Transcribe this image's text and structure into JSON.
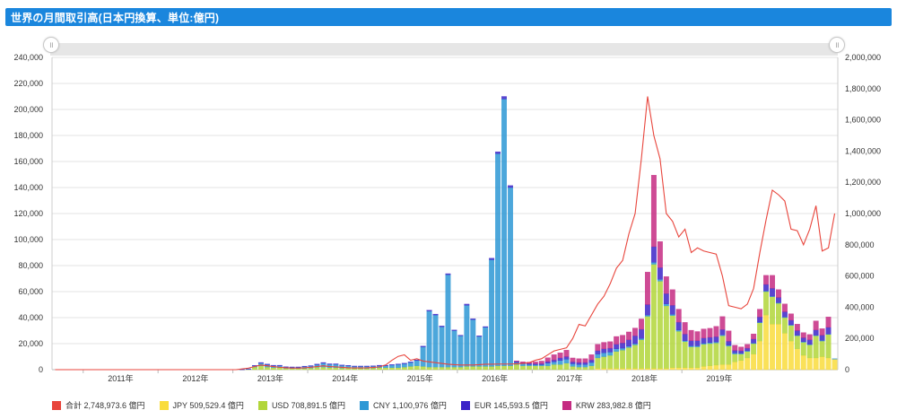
{
  "header": {
    "title": "世界の月間取引高(日本円換算、単位:億円)"
  },
  "slider": {
    "left_icon": "grip-icon",
    "right_icon": "grip-icon"
  },
  "colors": {
    "total": "#e8453c",
    "JPY": "#f9dc3c",
    "USD": "#b2d63a",
    "CNY": "#2d98d5",
    "EUR": "#3c24c8",
    "KRW": "#c52b82"
  },
  "legend": [
    {
      "key": "total",
      "label": "合計  2,748,973.6 億円"
    },
    {
      "key": "JPY",
      "label": "JPY  509,529.4 億円"
    },
    {
      "key": "USD",
      "label": "USD  708,891.5 億円"
    },
    {
      "key": "CNY",
      "label": "CNY  1,100,976 億円"
    },
    {
      "key": "EUR",
      "label": "EUR  145,593.5 億円"
    },
    {
      "key": "KRW",
      "label": "KRW  283,982.8 億円"
    }
  ],
  "chart_data": {
    "type": "bar",
    "stacked": true,
    "grid": true,
    "legend_position": "bottom",
    "x_start": "2010-08",
    "x_ticks": [
      "2011年",
      "2012年",
      "2013年",
      "2014年",
      "2015年",
      "2016年",
      "2017年",
      "2018年",
      "2019年"
    ],
    "y_left": {
      "lim": [
        0,
        240000
      ],
      "ticks": [
        "0",
        "20,000",
        "40,000",
        "60,000",
        "80,000",
        "100,000",
        "120,000",
        "140,000",
        "160,000",
        "180,000",
        "200,000",
        "220,000",
        "240,000"
      ]
    },
    "y_right": {
      "lim": [
        0,
        2000000
      ],
      "ticks": [
        "0",
        "200,000",
        "400,000",
        "600,000",
        "800,000",
        "1,000,000",
        "1,200,000",
        "1,400,000",
        "1,600,000",
        "1,800,000",
        "2,000,000"
      ]
    },
    "stack_order": [
      "JPY",
      "USD",
      "CNY",
      "EUR",
      "KRW"
    ],
    "series": [
      {
        "key": "JPY",
        "values": [
          0,
          0,
          0,
          0,
          0,
          0,
          0,
          0,
          0,
          0,
          0,
          0,
          0,
          0,
          0,
          0,
          0,
          0,
          0,
          0,
          0,
          0,
          0,
          0,
          0,
          0,
          0,
          0,
          0,
          0,
          0,
          0,
          0,
          0,
          0,
          0,
          0,
          0,
          0,
          0,
          0,
          0,
          0,
          0,
          0,
          0,
          0,
          0,
          0,
          0,
          0,
          0,
          0,
          0,
          0,
          0,
          0,
          0,
          0,
          0,
          0,
          0,
          0,
          0,
          0,
          0,
          0,
          0,
          0,
          0,
          0,
          0,
          0,
          0,
          0,
          0,
          0,
          0,
          0,
          0,
          0,
          0,
          0,
          0,
          0,
          0,
          0,
          1000,
          1000,
          1000,
          1000,
          1000,
          1000,
          1000,
          1000,
          1000,
          1000,
          1000,
          1000,
          1500,
          1500,
          1500,
          1500,
          1500,
          2500,
          3000,
          3500,
          4000,
          4000,
          6000,
          7000,
          9000,
          12000,
          22000,
          42000,
          35000,
          35000,
          28000,
          22000,
          16000,
          11000,
          9000,
          9000,
          10000,
          9000,
          8000,
          10000,
          6000,
          3000,
          3000,
          3000,
          6000,
          9000,
          12000,
          15000,
          10000,
          7000,
          6000,
          5000,
          4000,
          5000,
          7000,
          9000,
          13000,
          9000,
          10000
        ]
      },
      {
        "key": "USD",
        "values": [
          0,
          0,
          0,
          0,
          0,
          0,
          0,
          0,
          0,
          0,
          0,
          0,
          0,
          0,
          0,
          0,
          0,
          0,
          0,
          0,
          0,
          0,
          0,
          0,
          0,
          0,
          0,
          0,
          0,
          0,
          200,
          400,
          2000,
          3000,
          2000,
          1500,
          1500,
          1000,
          800,
          800,
          900,
          1200,
          1800,
          2000,
          1600,
          1600,
          1200,
          1200,
          1000,
          1000,
          1000,
          1200,
          1500,
          1500,
          1500,
          1500,
          2000,
          2500,
          3000,
          2500,
          2000,
          2000,
          2000,
          2000,
          2000,
          2000,
          2500,
          2500,
          2500,
          2500,
          2500,
          3000,
          3000,
          3000,
          4000,
          3000,
          3000,
          3000,
          3000,
          3000,
          4000,
          4000,
          5000,
          2500,
          2000,
          2000,
          3000,
          8000,
          9000,
          10000,
          13000,
          14000,
          16000,
          18000,
          22000,
          40000,
          80000,
          67000,
          48000,
          40000,
          28000,
          20000,
          16000,
          16000,
          17000,
          17000,
          17000,
          22000,
          14000,
          6000,
          5000,
          5000,
          8000,
          14000,
          18000,
          21000,
          16000,
          12000,
          12000,
          10000,
          10000,
          10000,
          17000,
          12000,
          18000
        ]
      },
      {
        "key": "CNY",
        "values": [
          0,
          0,
          0,
          0,
          0,
          0,
          0,
          0,
          0,
          0,
          0,
          0,
          0,
          0,
          0,
          0,
          0,
          0,
          0,
          0,
          0,
          0,
          0,
          0,
          0,
          0,
          0,
          0,
          0,
          0,
          0,
          200,
          1000,
          2000,
          1800,
          1500,
          1500,
          1000,
          1000,
          1000,
          1500,
          1500,
          2000,
          3000,
          2500,
          2500,
          2000,
          1800,
          1500,
          1500,
          1500,
          1500,
          1500,
          1500,
          2000,
          2500,
          2500,
          3000,
          4000,
          15000,
          43000,
          40000,
          31000,
          71000,
          28000,
          24000,
          47000,
          36000,
          23000,
          30000,
          82000,
          163000,
          205000,
          137000,
          1500,
          1500,
          1000,
          800,
          800,
          2000,
          2000,
          3000,
          3000,
          2000,
          2000,
          2000,
          2500,
          3000,
          3000,
          2500,
          2000,
          1500,
          1000,
          1000,
          1000,
          1000,
          1500,
          1500,
          1500,
          1000,
          1000,
          800,
          800,
          800,
          800,
          800,
          800,
          800,
          800,
          800,
          500,
          500,
          500,
          500,
          500,
          500,
          500,
          500,
          500,
          500,
          500,
          500,
          500,
          500,
          500,
          500,
          500
        ]
      },
      {
        "key": "EUR",
        "values": [
          0,
          0,
          0,
          0,
          0,
          0,
          0,
          0,
          0,
          0,
          0,
          0,
          0,
          0,
          0,
          0,
          0,
          0,
          0,
          0,
          0,
          0,
          0,
          0,
          0,
          0,
          0,
          0,
          0,
          0,
          50,
          100,
          300,
          500,
          500,
          400,
          400,
          300,
          300,
          300,
          300,
          400,
          500,
          500,
          400,
          400,
          400,
          300,
          300,
          300,
          300,
          300,
          400,
          400,
          400,
          400,
          500,
          500,
          500,
          600,
          700,
          700,
          600,
          800,
          500,
          500,
          900,
          700,
          500,
          600,
          1200,
          1500,
          2000,
          1500,
          800,
          800,
          800,
          700,
          800,
          1200,
          1500,
          2000,
          2000,
          1500,
          1500,
          1500,
          2000,
          2500,
          3000,
          3000,
          3500,
          4000,
          5000,
          6000,
          7000,
          8000,
          12000,
          9000,
          8000,
          7000,
          6000,
          5000,
          4000,
          4000,
          4000,
          4000,
          4000,
          4000,
          3000,
          2000,
          2000,
          2000,
          3000,
          4000,
          5000,
          6000,
          4000,
          4000,
          3500,
          3500,
          3000,
          3500,
          4000,
          4000,
          5000
        ]
      },
      {
        "key": "KRW",
        "values": [
          0,
          0,
          0,
          0,
          0,
          0,
          0,
          0,
          0,
          0,
          0,
          0,
          0,
          0,
          0,
          0,
          0,
          0,
          0,
          0,
          0,
          0,
          0,
          0,
          0,
          0,
          0,
          0,
          0,
          0,
          0,
          0,
          0,
          0,
          0,
          0,
          0,
          0,
          0,
          0,
          0,
          0,
          0,
          0,
          0,
          0,
          0,
          0,
          0,
          0,
          0,
          0,
          0,
          0,
          0,
          0,
          0,
          0,
          0,
          0,
          0,
          0,
          0,
          0,
          0,
          0,
          0,
          0,
          0,
          0,
          0,
          0,
          0,
          0,
          500,
          800,
          1000,
          1500,
          2000,
          3000,
          4000,
          4000,
          5000,
          3000,
          3000,
          3000,
          4000,
          5000,
          5000,
          5000,
          6000,
          6000,
          6000,
          6000,
          8000,
          25000,
          55000,
          20000,
          13000,
          12000,
          10000,
          9000,
          8000,
          7000,
          7000,
          7000,
          8000,
          10000,
          8000,
          4000,
          3000,
          3000,
          4000,
          6000,
          7000,
          10000,
          6000,
          6000,
          5000,
          5000,
          4000,
          4000,
          7000,
          5000,
          8000
        ]
      }
    ],
    "total": {
      "key": "total",
      "axis": "right",
      "values": [
        0,
        0,
        0,
        0,
        0,
        0,
        0,
        0,
        0,
        0,
        0,
        0,
        0,
        0,
        0,
        0,
        0,
        0,
        0,
        0,
        0,
        0,
        0,
        0,
        0,
        0,
        0,
        0,
        0,
        0,
        5000,
        10000,
        20000,
        30000,
        25000,
        20000,
        15000,
        12000,
        10000,
        10000,
        12000,
        15000,
        20000,
        25000,
        20000,
        18000,
        15000,
        12000,
        11000,
        11000,
        12000,
        14000,
        18000,
        30000,
        60000,
        85000,
        95000,
        60000,
        70000,
        55000,
        50000,
        45000,
        40000,
        35000,
        32000,
        30000,
        30000,
        30000,
        32000,
        35000,
        35000,
        36000,
        36000,
        36000,
        38000,
        40000,
        45000,
        60000,
        70000,
        95000,
        120000,
        130000,
        140000,
        200000,
        290000,
        280000,
        350000,
        420000,
        470000,
        550000,
        650000,
        700000,
        870000,
        1000000,
        1350000,
        1750000,
        1500000,
        1350000,
        1000000,
        950000,
        850000,
        900000,
        750000,
        780000,
        760000,
        750000,
        740000,
        600000,
        410000,
        400000,
        390000,
        420000,
        520000,
        750000,
        960000,
        1150000,
        1120000,
        1080000,
        900000,
        890000,
        800000,
        900000,
        1050000,
        760000,
        780000,
        1000000
      ]
    }
  }
}
